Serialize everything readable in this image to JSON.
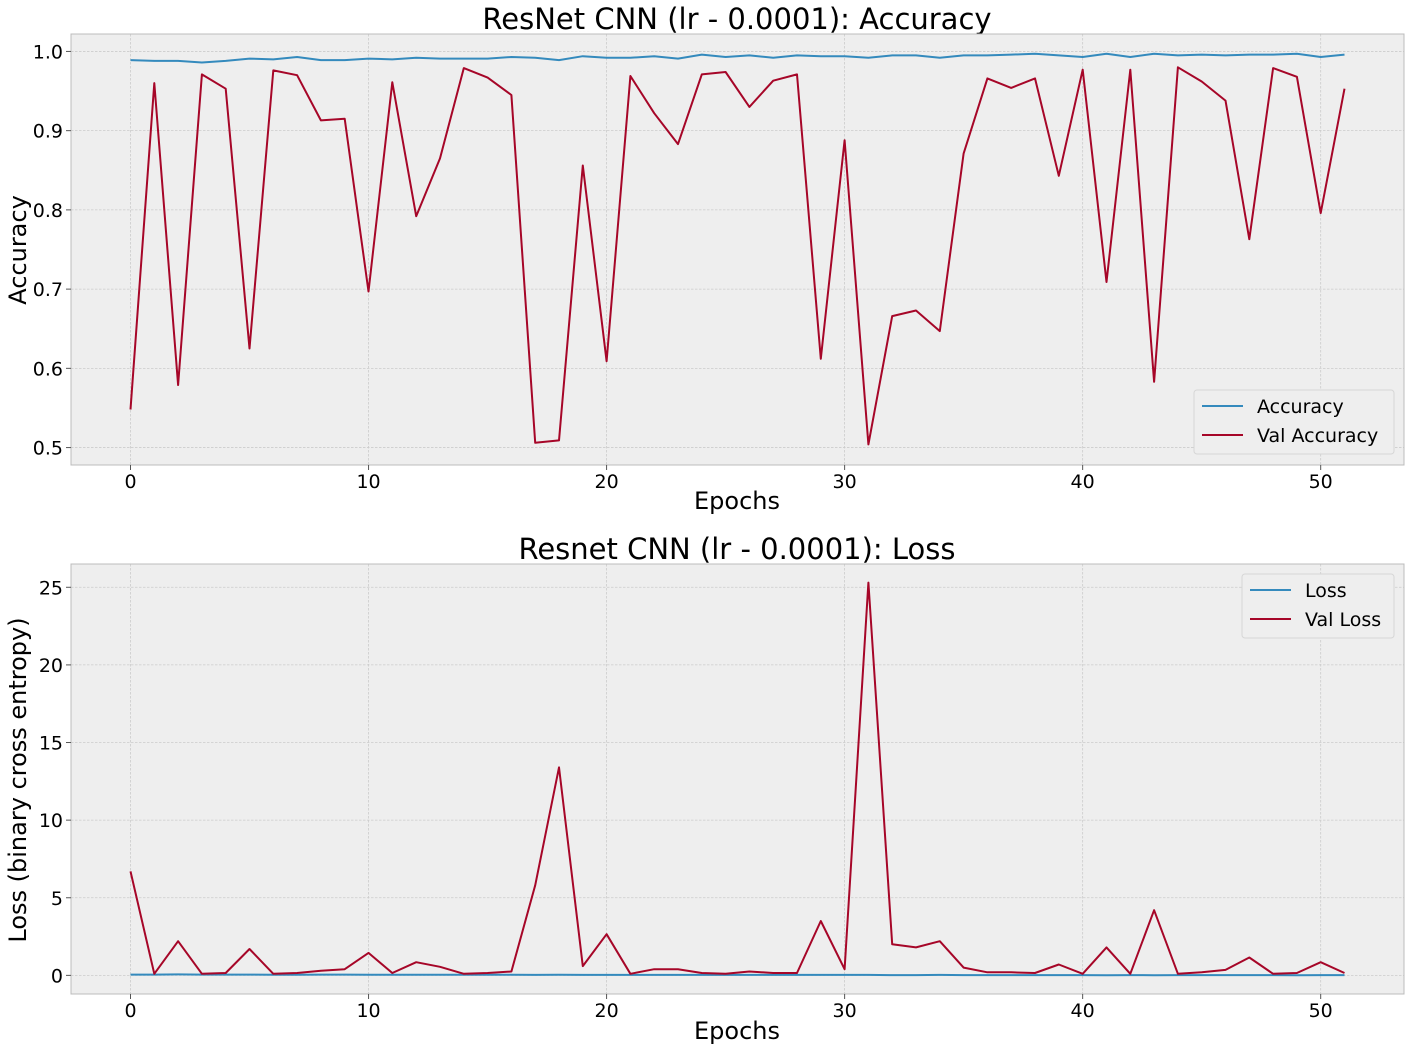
{
  "chart_data": [
    {
      "type": "line",
      "title": "ResNet CNN (lr - 0.0001): Accuracy",
      "xlabel": "Epochs",
      "ylabel": "Accuracy",
      "xlim": [
        -2.5,
        53.5
      ],
      "ylim": [
        0.478,
        1.022
      ],
      "xticks": [
        0,
        10,
        20,
        30,
        40,
        50
      ],
      "yticks": [
        0.5,
        0.6,
        0.7,
        0.8,
        0.9,
        1.0
      ],
      "ytick_labels": [
        "0.5",
        "0.6",
        "0.7",
        "0.8",
        "0.9",
        "1.0"
      ],
      "grid": true,
      "legend": "lower-right",
      "x": [
        0,
        1,
        2,
        3,
        4,
        5,
        6,
        7,
        8,
        9,
        10,
        11,
        12,
        13,
        14,
        15,
        16,
        17,
        18,
        19,
        20,
        21,
        22,
        23,
        24,
        25,
        26,
        27,
        28,
        29,
        30,
        31,
        32,
        33,
        34,
        35,
        36,
        37,
        38,
        39,
        40,
        41,
        42,
        43,
        44,
        45,
        46,
        47,
        48,
        49,
        50,
        51
      ],
      "series": [
        {
          "name": "Accuracy",
          "color": "#348abd",
          "values": [
            0.989,
            0.988,
            0.988,
            0.986,
            0.988,
            0.991,
            0.99,
            0.993,
            0.989,
            0.989,
            0.991,
            0.99,
            0.992,
            0.991,
            0.991,
            0.991,
            0.993,
            0.992,
            0.989,
            0.994,
            0.992,
            0.992,
            0.994,
            0.991,
            0.996,
            0.993,
            0.995,
            0.992,
            0.995,
            0.994,
            0.994,
            0.992,
            0.995,
            0.995,
            0.992,
            0.995,
            0.995,
            0.996,
            0.997,
            0.995,
            0.993,
            0.997,
            0.993,
            0.997,
            0.995,
            0.996,
            0.995,
            0.996,
            0.996,
            0.997,
            0.993,
            0.996
          ]
        },
        {
          "name": "Val Accuracy",
          "color": "#a60628",
          "values": [
            0.548,
            0.96,
            0.579,
            0.971,
            0.953,
            0.625,
            0.976,
            0.97,
            0.913,
            0.915,
            0.697,
            0.961,
            0.792,
            0.865,
            0.979,
            0.967,
            0.945,
            0.506,
            0.509,
            0.856,
            0.609,
            0.969,
            0.922,
            0.883,
            0.971,
            0.974,
            0.93,
            0.963,
            0.971,
            0.612,
            0.888,
            0.504,
            0.666,
            0.673,
            0.647,
            0.871,
            0.966,
            0.954,
            0.966,
            0.843,
            0.977,
            0.709,
            0.977,
            0.583,
            0.98,
            0.962,
            0.938,
            0.763,
            0.979,
            0.968,
            0.796,
            0.953
          ]
        }
      ]
    },
    {
      "type": "line",
      "title": "Resnet CNN (lr - 0.0001): Loss",
      "xlabel": "Epochs",
      "ylabel": "Loss (binary cross entropy)",
      "xlim": [
        -2.5,
        53.5
      ],
      "ylim": [
        -1.2,
        26.5
      ],
      "xticks": [
        0,
        10,
        20,
        30,
        40,
        50
      ],
      "yticks": [
        0,
        5,
        10,
        15,
        20,
        25
      ],
      "ytick_labels": [
        "0",
        "5",
        "10",
        "15",
        "20",
        "25"
      ],
      "grid": true,
      "legend": "upper-right",
      "x": [
        0,
        1,
        2,
        3,
        4,
        5,
        6,
        7,
        8,
        9,
        10,
        11,
        12,
        13,
        14,
        15,
        16,
        17,
        18,
        19,
        20,
        21,
        22,
        23,
        24,
        25,
        26,
        27,
        28,
        29,
        30,
        31,
        32,
        33,
        34,
        35,
        36,
        37,
        38,
        39,
        40,
        41,
        42,
        43,
        44,
        45,
        46,
        47,
        48,
        49,
        50,
        51
      ],
      "series": [
        {
          "name": "Loss",
          "color": "#348abd",
          "values": [
            0.05,
            0.05,
            0.06,
            0.05,
            0.05,
            0.05,
            0.04,
            0.04,
            0.05,
            0.05,
            0.04,
            0.04,
            0.04,
            0.04,
            0.04,
            0.04,
            0.04,
            0.03,
            0.04,
            0.03,
            0.03,
            0.03,
            0.03,
            0.03,
            0.03,
            0.03,
            0.03,
            0.03,
            0.03,
            0.03,
            0.03,
            0.03,
            0.02,
            0.02,
            0.03,
            0.02,
            0.02,
            0.02,
            0.02,
            0.02,
            0.02,
            0.01,
            0.02,
            0.01,
            0.02,
            0.02,
            0.02,
            0.02,
            0.02,
            0.01,
            0.02,
            0.02
          ]
        },
        {
          "name": "Val Loss",
          "color": "#a60628",
          "values": [
            6.7,
            0.1,
            2.2,
            0.1,
            0.15,
            1.7,
            0.1,
            0.15,
            0.3,
            0.4,
            1.45,
            0.15,
            0.85,
            0.55,
            0.1,
            0.15,
            0.25,
            5.8,
            13.4,
            0.6,
            2.65,
            0.1,
            0.4,
            0.4,
            0.15,
            0.1,
            0.25,
            0.15,
            0.15,
            3.5,
            0.4,
            25.3,
            2.0,
            1.8,
            2.2,
            0.5,
            0.2,
            0.2,
            0.15,
            0.7,
            0.1,
            1.8,
            0.1,
            4.2,
            0.1,
            0.2,
            0.35,
            1.15,
            0.1,
            0.15,
            0.85,
            0.15
          ]
        }
      ]
    }
  ]
}
